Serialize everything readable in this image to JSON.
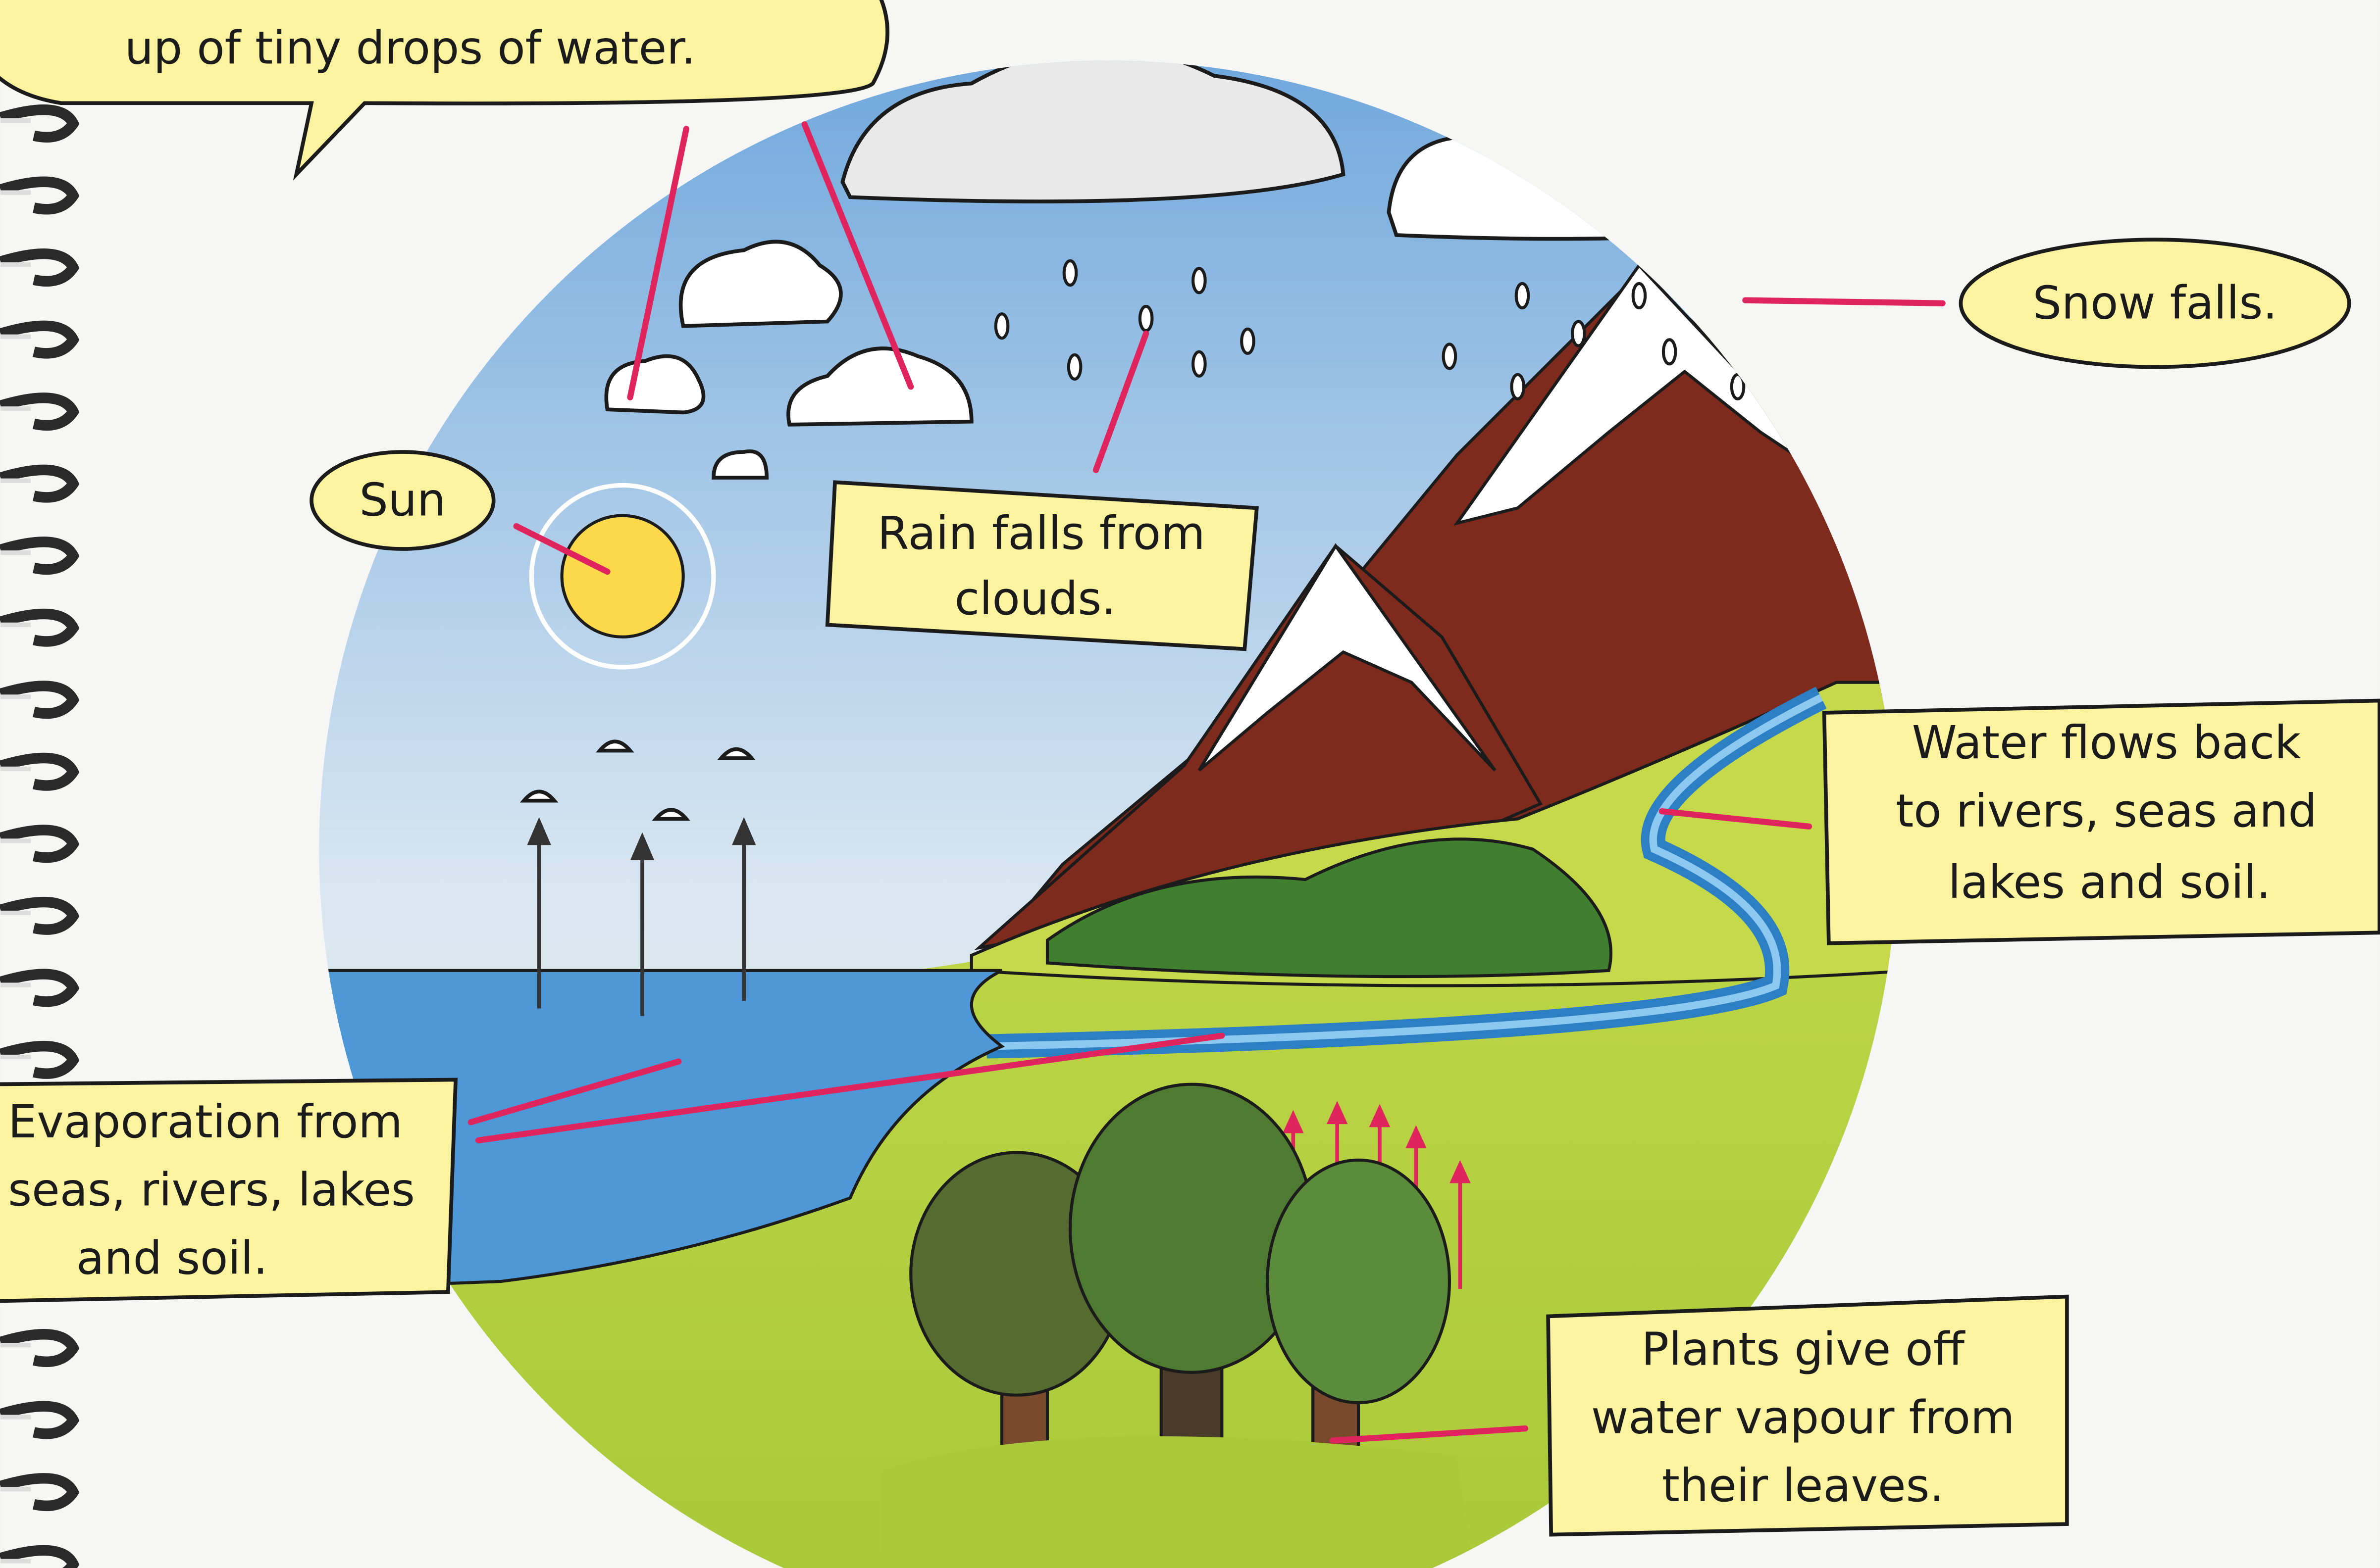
{
  "labels": {
    "cloud_note": [
      "up of tiny drops of water."
    ],
    "sun": "Sun",
    "rain": [
      "Rain falls from",
      "clouds."
    ],
    "snow": "Snow falls.",
    "water_flows": [
      "Water flows back",
      "to rivers, seas and",
      "lakes and soil."
    ],
    "evaporation": [
      "Evaporation from",
      "seas, rivers, lakes",
      "and soil."
    ],
    "plants": [
      "Plants give off",
      "water vapour from",
      "their leaves."
    ]
  }
}
